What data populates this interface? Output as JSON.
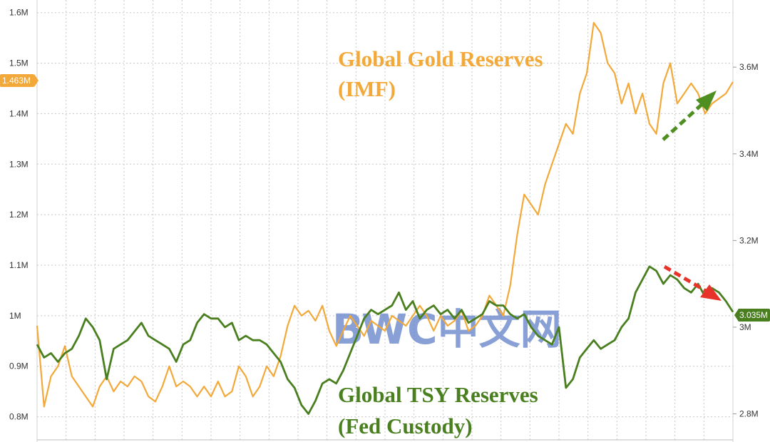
{
  "chart_data": {
    "type": "line",
    "title": "",
    "x_range": [
      0,
      100
    ],
    "grid": true,
    "y_left": {
      "ticks": [
        0.8,
        0.9,
        1.0,
        1.1,
        1.2,
        1.3,
        1.4,
        1.5,
        1.6
      ],
      "tick_labels": [
        "0.8M",
        "0.9M",
        "1M",
        "1.1M",
        "1.2M",
        "1.3M",
        "1.4M",
        "1.5M",
        "1.6M"
      ],
      "range": [
        0.75,
        1.625
      ]
    },
    "y_right": {
      "ticks": [
        2.8,
        3.0,
        3.2,
        3.4,
        3.6
      ],
      "tick_labels": [
        "2.8M",
        "3M",
        "3.2M",
        "3.4M",
        "3.6M"
      ],
      "range": [
        2.735,
        3.755
      ]
    },
    "series": [
      {
        "name": "Global Gold Reserves (IMF)",
        "label_line1": "Global Gold Reserves",
        "label_line2": "(IMF)",
        "axis": "left",
        "color": "#f3a93a",
        "last_value_label": "1.463M",
        "x": [
          0,
          1,
          2,
          3,
          4,
          5,
          6,
          7,
          8,
          9,
          10,
          11,
          12,
          13,
          14,
          15,
          16,
          17,
          18,
          19,
          20,
          21,
          22,
          23,
          24,
          25,
          26,
          27,
          28,
          29,
          30,
          31,
          32,
          33,
          34,
          35,
          36,
          37,
          38,
          39,
          40,
          41,
          42,
          43,
          44,
          45,
          46,
          47,
          48,
          49,
          50,
          51,
          52,
          53,
          54,
          55,
          56,
          57,
          58,
          59,
          60,
          61,
          62,
          63,
          64,
          65,
          66,
          67,
          68,
          69,
          70,
          71,
          72,
          73,
          74,
          75,
          76,
          77,
          78,
          79,
          80,
          81,
          82,
          83,
          84,
          85,
          86,
          87,
          88,
          89,
          90,
          91,
          92,
          93,
          94,
          95,
          96,
          97,
          98,
          99,
          100
        ],
        "values": [
          0.98,
          0.82,
          0.88,
          0.9,
          0.94,
          0.88,
          0.86,
          0.84,
          0.82,
          0.86,
          0.88,
          0.85,
          0.87,
          0.86,
          0.88,
          0.87,
          0.84,
          0.83,
          0.86,
          0.9,
          0.86,
          0.87,
          0.86,
          0.84,
          0.86,
          0.84,
          0.87,
          0.84,
          0.85,
          0.9,
          0.88,
          0.84,
          0.86,
          0.9,
          0.88,
          0.92,
          0.98,
          1.02,
          1.0,
          1.01,
          0.99,
          1.02,
          0.97,
          0.94,
          0.97,
          1.0,
          0.98,
          0.96,
          0.99,
          0.98,
          0.97,
          1.0,
          0.99,
          0.98,
          1.0,
          1.02,
          1.0,
          0.97,
          1.0,
          0.98,
          0.99,
          1.01,
          0.97,
          0.98,
          1.0,
          1.04,
          1.02,
          1.0,
          1.06,
          1.16,
          1.24,
          1.22,
          1.2,
          1.26,
          1.3,
          1.34,
          1.38,
          1.36,
          1.44,
          1.48,
          1.58,
          1.56,
          1.5,
          1.48,
          1.42,
          1.46,
          1.4,
          1.44,
          1.38,
          1.36,
          1.46,
          1.5,
          1.42,
          1.44,
          1.46,
          1.44,
          1.4,
          1.42,
          1.43,
          1.44,
          1.463
        ]
      },
      {
        "name": "Global TSY Reserves (Fed Custody)",
        "label_line1": "Global TSY Reserves",
        "label_line2": "(Fed Custody)",
        "axis": "right",
        "color": "#4a7f1f",
        "last_value_label": "3.035M",
        "x": [
          0,
          1,
          2,
          3,
          4,
          5,
          6,
          7,
          8,
          9,
          10,
          11,
          12,
          13,
          14,
          15,
          16,
          17,
          18,
          19,
          20,
          21,
          22,
          23,
          24,
          25,
          26,
          27,
          28,
          29,
          30,
          31,
          32,
          33,
          34,
          35,
          36,
          37,
          38,
          39,
          40,
          41,
          42,
          43,
          44,
          45,
          46,
          47,
          48,
          49,
          50,
          51,
          52,
          53,
          54,
          55,
          56,
          57,
          58,
          59,
          60,
          61,
          62,
          63,
          64,
          65,
          66,
          67,
          68,
          69,
          70,
          71,
          72,
          73,
          74,
          75,
          76,
          77,
          78,
          79,
          80,
          81,
          82,
          83,
          84,
          85,
          86,
          87,
          88,
          89,
          90,
          91,
          92,
          93,
          94,
          95,
          96,
          97,
          98,
          99,
          100
        ],
        "values": [
          2.96,
          2.93,
          2.94,
          2.92,
          2.94,
          2.95,
          2.98,
          3.02,
          3.0,
          2.97,
          2.88,
          2.95,
          2.96,
          2.97,
          2.99,
          3.01,
          2.98,
          2.97,
          2.96,
          2.95,
          2.92,
          2.96,
          2.97,
          3.01,
          3.03,
          3.02,
          3.02,
          3.0,
          3.01,
          2.97,
          2.98,
          2.97,
          2.97,
          2.96,
          2.94,
          2.92,
          2.88,
          2.86,
          2.82,
          2.8,
          2.83,
          2.87,
          2.88,
          2.87,
          2.9,
          2.94,
          2.98,
          3.02,
          3.04,
          3.03,
          3.04,
          3.05,
          3.08,
          3.04,
          3.06,
          3.02,
          3.04,
          3.05,
          3.03,
          3.04,
          3.02,
          3.04,
          3.01,
          3.02,
          3.03,
          3.06,
          3.05,
          3.05,
          3.03,
          3.02,
          3.03,
          3.0,
          2.98,
          2.97,
          2.96,
          3.0,
          2.86,
          2.88,
          2.93,
          2.95,
          2.97,
          2.95,
          2.96,
          2.97,
          3.0,
          3.02,
          3.08,
          3.11,
          3.14,
          3.13,
          3.1,
          3.12,
          3.11,
          3.09,
          3.08,
          3.1,
          3.07,
          3.09,
          3.08,
          3.06,
          3.035
        ]
      }
    ]
  },
  "watermark": "BWC中文网"
}
